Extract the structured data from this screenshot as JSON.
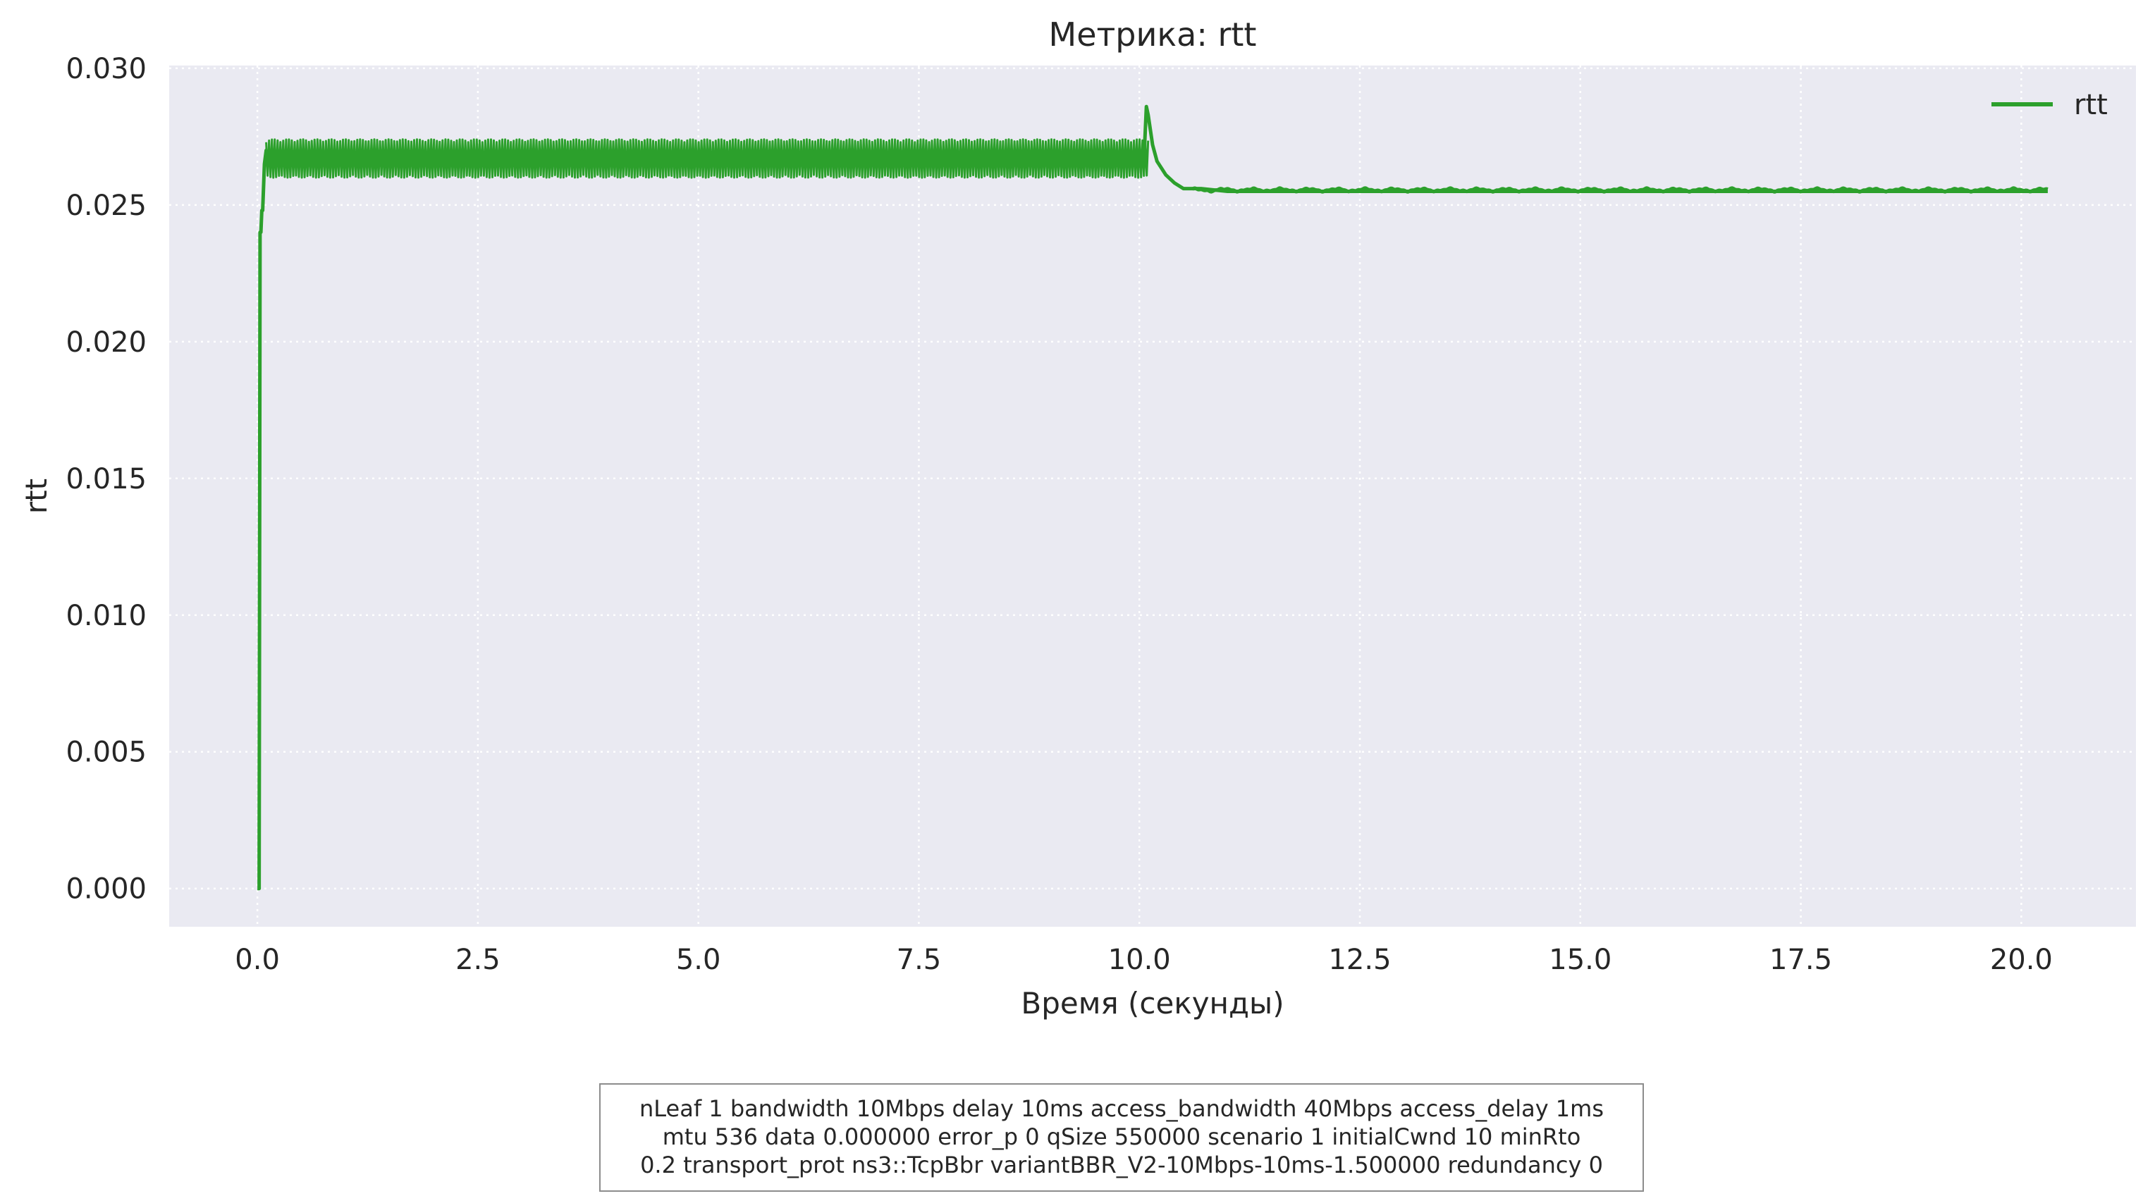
{
  "chart_data": {
    "type": "line",
    "title": "Метрика: rtt",
    "xlabel": "Время (секунды)",
    "ylabel": "rtt",
    "xlim": [
      -1.0,
      21.3
    ],
    "ylim": [
      -0.0014,
      0.0301
    ],
    "x_ticks": [
      0.0,
      2.5,
      5.0,
      7.5,
      10.0,
      12.5,
      15.0,
      17.5,
      20.0
    ],
    "x_tick_labels": [
      "0.0",
      "2.5",
      "5.0",
      "7.5",
      "10.0",
      "12.5",
      "15.0",
      "17.5",
      "20.0"
    ],
    "y_ticks": [
      0.0,
      0.005,
      0.01,
      0.015,
      0.02,
      0.025,
      0.03
    ],
    "y_tick_labels": [
      "0.000",
      "0.005",
      "0.010",
      "0.015",
      "0.020",
      "0.025",
      "0.030"
    ],
    "grid": true,
    "legend_position": "top-right",
    "series": [
      {
        "name": "rtt",
        "color": "#2ca02c",
        "x": [
          0.0,
          0.02,
          0.03,
          0.04,
          0.05,
          0.06,
          0.08,
          0.1,
          0.12,
          0.15,
          0.2,
          0.3,
          1.0,
          2.0,
          3.0,
          4.0,
          5.0,
          6.0,
          7.0,
          8.0,
          9.0,
          10.0,
          10.05,
          10.08,
          10.1,
          10.15,
          10.2,
          10.3,
          10.4,
          10.5,
          10.7,
          11.0,
          12.0,
          13.0,
          14.0,
          15.0,
          16.0,
          17.0,
          18.0,
          19.0,
          20.0,
          20.3
        ],
        "y": [
          0.0,
          0.0,
          0.024,
          0.024,
          0.0248,
          0.0248,
          0.0265,
          0.027,
          0.0268,
          0.0268,
          0.0267,
          0.0267,
          0.0267,
          0.0267,
          0.0267,
          0.0267,
          0.0267,
          0.0267,
          0.0267,
          0.0267,
          0.0267,
          0.0267,
          0.0265,
          0.0286,
          0.0283,
          0.0272,
          0.0266,
          0.0261,
          0.0258,
          0.0256,
          0.0256,
          0.0255,
          0.0255,
          0.0255,
          0.0255,
          0.0255,
          0.0255,
          0.0255,
          0.0255,
          0.0255,
          0.0255,
          0.0255
        ],
        "oscillation": {
          "x_range": [
            0.1,
            10.1
          ],
          "y_range": [
            0.026,
            0.0274
          ],
          "steady_x_range": [
            10.6,
            20.3
          ],
          "steady_y_range": [
            0.02548,
            0.02562
          ]
        }
      }
    ]
  },
  "info_box": {
    "text": "nLeaf 1 bandwidth 10Mbps delay  10ms access_bandwidth 40Mbps access_delay 1ms\nmtu 536 data  0.000000 error_p 0 qSize 550000 scenario 1 initialCwnd  10 minRto\n0.2 transport_prot ns3::TcpBbr variantBBR_V2-10Mbps-10ms-1.500000 redundancy 0"
  },
  "colors": {
    "plot_background": "#eaeaf2",
    "grid": "#ffffff",
    "series": "#2ca02c",
    "text": "#262626"
  }
}
